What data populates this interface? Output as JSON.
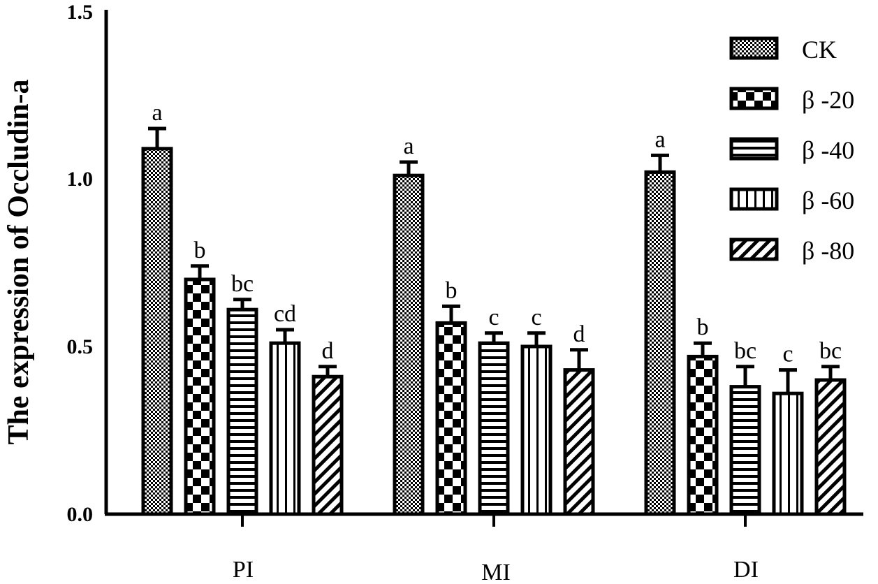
{
  "chart_data": {
    "type": "bar",
    "title": "",
    "xlabel": "",
    "ylabel": "The expression of Occludin-a",
    "ylim": [
      0,
      1.5
    ],
    "yticks": [
      "0.0",
      "0.5",
      "1.0",
      "1.5"
    ],
    "ytick_values": [
      0,
      0.5,
      1.0,
      1.5
    ],
    "categories": [
      "PI",
      "MI",
      "DI"
    ],
    "legend_position": "top-right",
    "series": [
      {
        "name": "CK",
        "pattern": "fine-check",
        "values": [
          1.09,
          1.01,
          1.02
        ],
        "errors": [
          0.06,
          0.04,
          0.05
        ],
        "labels": [
          "a",
          "a",
          "a"
        ]
      },
      {
        "name": "β -20",
        "pattern": "checker",
        "values": [
          0.7,
          0.57,
          0.47
        ],
        "errors": [
          0.04,
          0.05,
          0.04
        ],
        "labels": [
          "b",
          "b",
          "b"
        ]
      },
      {
        "name": "β -40",
        "pattern": "horizontal",
        "values": [
          0.61,
          0.51,
          0.38
        ],
        "errors": [
          0.03,
          0.03,
          0.06
        ],
        "labels": [
          "bc",
          "c",
          "bc"
        ]
      },
      {
        "name": "β -60",
        "pattern": "vertical",
        "values": [
          0.51,
          0.5,
          0.36
        ],
        "errors": [
          0.04,
          0.04,
          0.07
        ],
        "labels": [
          "cd",
          "c",
          "c"
        ]
      },
      {
        "name": "β -80",
        "pattern": "diagonal",
        "values": [
          0.41,
          0.43,
          0.4
        ],
        "errors": [
          0.03,
          0.06,
          0.04
        ],
        "labels": [
          "d",
          "d",
          "bc"
        ]
      }
    ]
  }
}
